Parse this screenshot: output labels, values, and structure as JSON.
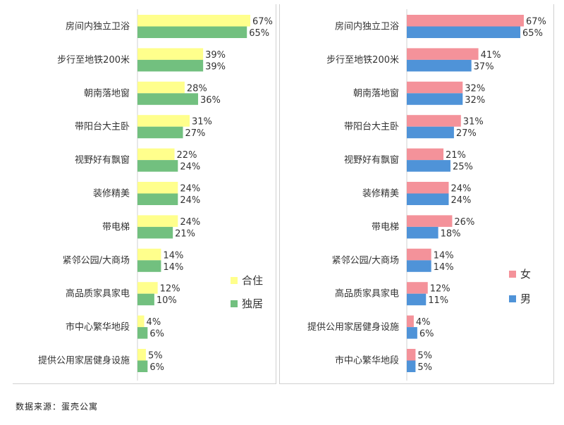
{
  "source_note": "数据来源：蛋壳公寓",
  "chart_data": [
    {
      "type": "bar",
      "orientation": "horizontal",
      "title": "",
      "categories": [
        "房间内独立卫浴",
        "步行至地铁200米",
        "朝南落地窗",
        "带阳台大主卧",
        "视野好有飘窗",
        "装修精美",
        "带电梯",
        "紧邻公园/大商场",
        "高品质家具家电",
        "市中心繁华地段",
        "提供公用家居健身设施"
      ],
      "series": [
        {
          "name": "合住",
          "color": "#ffff8c",
          "values": [
            67,
            39,
            28,
            31,
            22,
            24,
            24,
            14,
            12,
            4,
            5
          ],
          "labels": [
            "67%",
            "39%",
            "28%",
            "31%",
            "22%",
            "24%",
            "24%",
            "14%",
            "12%",
            "4%",
            "5%"
          ]
        },
        {
          "name": "独居",
          "color": "#72c07f",
          "values": [
            65,
            39,
            36,
            27,
            24,
            24,
            21,
            14,
            10,
            6,
            6
          ],
          "labels": [
            "65%",
            "39%",
            "36%",
            "27%",
            "24%",
            "24%",
            "21%",
            "14%",
            "10%",
            "6%",
            "6%"
          ]
        }
      ],
      "xlim": [
        0,
        67
      ],
      "grid": false,
      "legend_position": "bottom-right"
    },
    {
      "type": "bar",
      "orientation": "horizontal",
      "title": "",
      "categories": [
        "房间内独立卫浴",
        "步行至地铁200米",
        "朝南落地窗",
        "带阳台大主卧",
        "视野好有飘窗",
        "装修精美",
        "带电梯",
        "紧邻公园/大商场",
        "高品质家具家电",
        "提供公用家居健身设施",
        "市中心繁华地段"
      ],
      "series": [
        {
          "name": "女",
          "color": "#f4929a",
          "values": [
            67,
            41,
            32,
            31,
            21,
            24,
            26,
            14,
            12,
            4,
            5
          ],
          "labels": [
            "67%",
            "41%",
            "32%",
            "31%",
            "21%",
            "24%",
            "26%",
            "14%",
            "12%",
            "4%",
            "5%"
          ]
        },
        {
          "name": "男",
          "color": "#4f93d8",
          "values": [
            65,
            37,
            32,
            27,
            25,
            24,
            18,
            14,
            11,
            6,
            5
          ],
          "labels": [
            "65%",
            "37%",
            "32%",
            "27%",
            "25%",
            "24%",
            "18%",
            "14%",
            "11%",
            "6%",
            "5%"
          ]
        }
      ],
      "xlim": [
        0,
        67
      ],
      "grid": false,
      "legend_position": "bottom-right"
    }
  ]
}
